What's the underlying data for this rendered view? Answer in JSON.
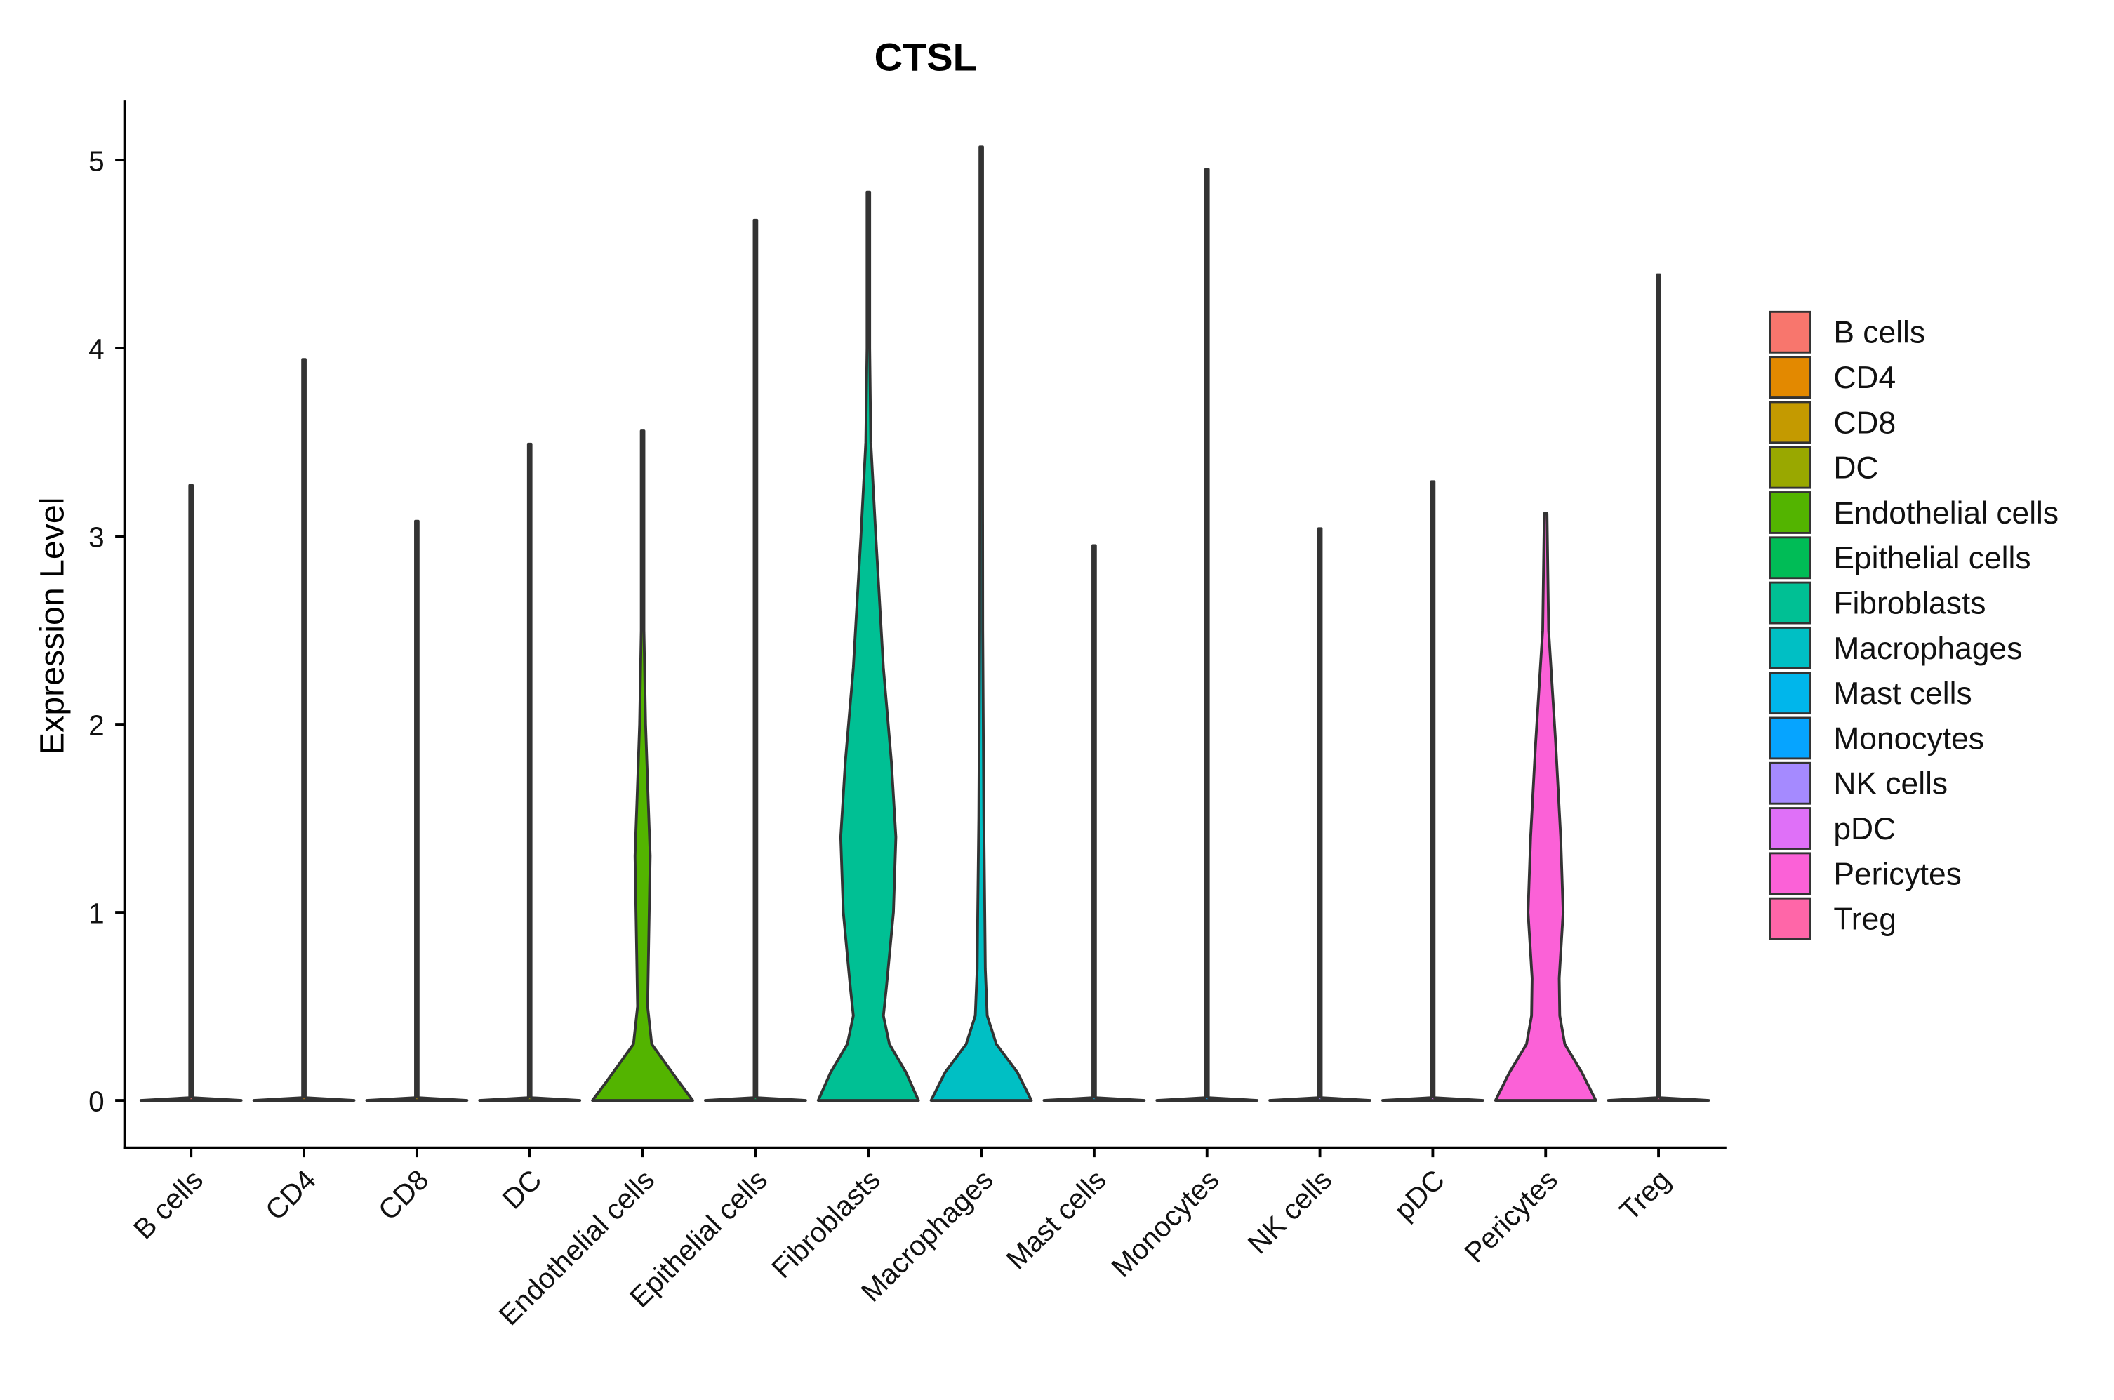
{
  "chart_data": {
    "type": "violin",
    "title": "CTSL",
    "xlabel": "",
    "ylabel": "Expression Level",
    "ylim": [
      -0.25,
      5.32
    ],
    "yticks": [
      0,
      1,
      2,
      3,
      4,
      5
    ],
    "grid": false,
    "legend_position": "right",
    "categories": [
      "B cells",
      "CD4",
      "CD8",
      "DC",
      "Endothelial cells",
      "Epithelial cells",
      "Fibroblasts",
      "Macrophages",
      "Mast cells",
      "Monocytes",
      "NK cells",
      "pDC",
      "Pericytes",
      "Treg"
    ],
    "colors": [
      "#F8766D",
      "#E38900",
      "#C49A00",
      "#99A800",
      "#53B400",
      "#00BC56",
      "#00C094",
      "#00BFC4",
      "#00B6EB",
      "#06A4FF",
      "#A58AFF",
      "#DF70F8",
      "#FB61D7",
      "#FF66A8"
    ],
    "max_values": [
      3.27,
      3.94,
      3.08,
      3.49,
      3.56,
      4.68,
      4.83,
      5.07,
      2.95,
      4.95,
      3.04,
      3.29,
      3.12,
      4.39
    ],
    "density_profiles": {
      "Endothelial cells": [
        [
          0,
          1.0
        ],
        [
          0.1,
          0.72
        ],
        [
          0.2,
          0.45
        ],
        [
          0.3,
          0.18
        ],
        [
          0.5,
          0.1
        ],
        [
          0.8,
          0.12
        ],
        [
          1.3,
          0.15
        ],
        [
          1.6,
          0.11
        ],
        [
          2.0,
          0.06
        ],
        [
          2.5,
          0.02
        ],
        [
          3.0,
          0.01
        ],
        [
          3.56,
          0
        ]
      ],
      "Fibroblasts": [
        [
          0,
          1.0
        ],
        [
          0.15,
          0.75
        ],
        [
          0.3,
          0.42
        ],
        [
          0.45,
          0.3
        ],
        [
          0.6,
          0.36
        ],
        [
          1.0,
          0.5
        ],
        [
          1.4,
          0.55
        ],
        [
          1.8,
          0.46
        ],
        [
          2.3,
          0.3
        ],
        [
          3.0,
          0.15
        ],
        [
          3.5,
          0.05
        ],
        [
          4.0,
          0.01
        ],
        [
          4.83,
          0
        ]
      ],
      "Macrophages": [
        [
          0,
          1.0
        ],
        [
          0.15,
          0.72
        ],
        [
          0.3,
          0.3
        ],
        [
          0.45,
          0.12
        ],
        [
          0.7,
          0.08
        ],
        [
          1.0,
          0.07
        ],
        [
          1.5,
          0.05
        ],
        [
          2.5,
          0.03
        ],
        [
          3.3,
          0.01
        ],
        [
          5.07,
          0
        ]
      ],
      "Pericytes": [
        [
          0,
          1.0
        ],
        [
          0.15,
          0.72
        ],
        [
          0.3,
          0.38
        ],
        [
          0.45,
          0.28
        ],
        [
          0.65,
          0.27
        ],
        [
          1.0,
          0.35
        ],
        [
          1.4,
          0.3
        ],
        [
          1.9,
          0.2
        ],
        [
          2.5,
          0.06
        ],
        [
          3.12,
          0
        ]
      ]
    }
  }
}
